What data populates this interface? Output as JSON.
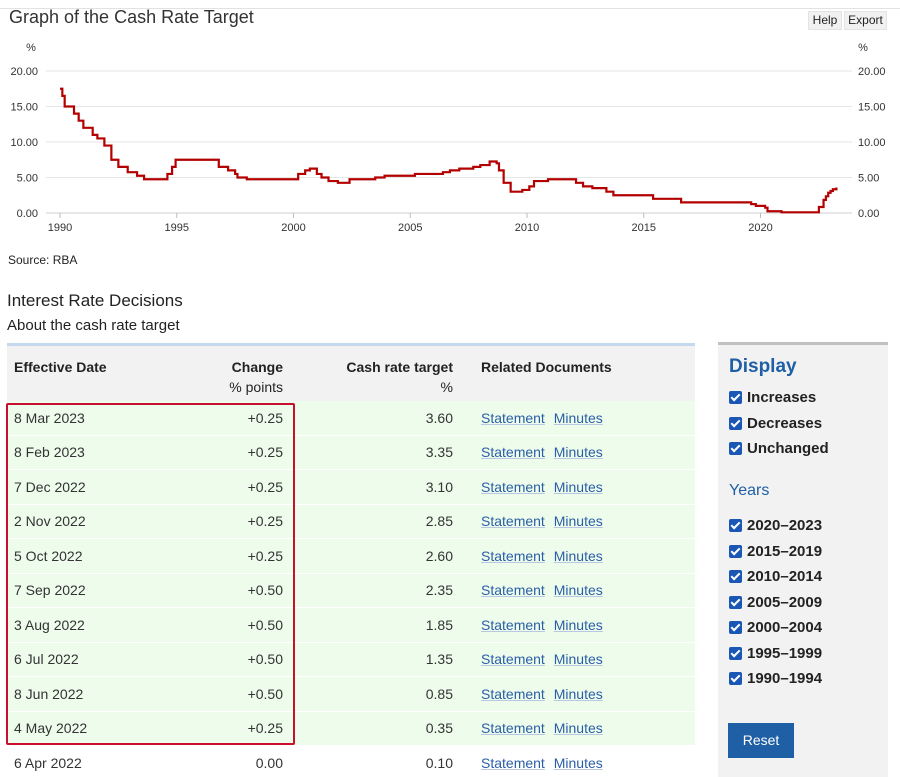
{
  "graph": {
    "title": "Graph of the Cash Rate Target",
    "help_label": "Help",
    "export_label": "Export",
    "source": "Source: RBA"
  },
  "chart_data": {
    "type": "line",
    "title": "Graph of the Cash Rate Target",
    "ylabel": "%",
    "ylim": [
      0,
      20
    ],
    "xlim": [
      1990,
      2025
    ],
    "yticks": [
      "0.00",
      "5.00",
      "10.00",
      "15.00",
      "20.00"
    ],
    "xticks": [
      "1990",
      "1995",
      "2000",
      "2005",
      "2010",
      "2015",
      "2020"
    ],
    "grid": true,
    "color": "#b30000",
    "series": [
      {
        "x": [
          1990.0,
          1990.1,
          1990.2,
          1990.4,
          1990.6,
          1990.8,
          1991.0,
          1991.2,
          1991.4,
          1991.6,
          1991.9,
          1992.2,
          1992.5,
          1992.9,
          1993.3,
          1993.6,
          1994.0,
          1994.6,
          1994.8,
          1994.95,
          1996.6,
          1996.8,
          1997.2,
          1997.5,
          1997.6,
          1998.0,
          1999.9,
          2000.2,
          2000.5,
          2000.7,
          2001.0,
          2001.2,
          2001.5,
          2001.9,
          2002.4,
          2002.8,
          2003.5,
          2003.9,
          2005.2,
          2006.4,
          2006.7,
          2007.1,
          2007.7,
          2008.0,
          2008.4,
          2008.7,
          2008.8,
          2009.0,
          2009.3,
          2009.8,
          2010.1,
          2010.3,
          2010.9,
          2011.9,
          2012.1,
          2012.4,
          2012.8,
          2013.4,
          2013.7,
          2015.1,
          2015.4,
          2016.4,
          2016.6,
          2019.4,
          2019.6,
          2019.8,
          2020.2,
          2020.3,
          2020.9,
          2022.3,
          2022.5,
          2022.7,
          2022.8,
          2022.9,
          2023.0,
          2023.1,
          2023.25
        ],
        "y": [
          17.5,
          16.5,
          15.0,
          15.0,
          14.0,
          13.0,
          12.0,
          12.0,
          11.0,
          10.5,
          9.5,
          7.5,
          6.5,
          5.75,
          5.25,
          4.75,
          4.75,
          5.5,
          6.5,
          7.5,
          7.5,
          6.5,
          6.0,
          5.5,
          5.0,
          4.75,
          4.75,
          5.5,
          6.0,
          6.25,
          5.5,
          5.0,
          4.5,
          4.25,
          4.75,
          4.75,
          5.0,
          5.25,
          5.5,
          5.75,
          6.0,
          6.25,
          6.5,
          6.75,
          7.25,
          7.0,
          6.0,
          4.25,
          3.0,
          3.25,
          3.75,
          4.5,
          4.75,
          4.75,
          4.25,
          3.75,
          3.5,
          3.0,
          2.5,
          2.5,
          2.0,
          2.0,
          1.5,
          1.5,
          1.25,
          1.0,
          0.75,
          0.25,
          0.1,
          0.1,
          0.85,
          1.85,
          2.35,
          2.85,
          3.1,
          3.35,
          3.6
        ]
      }
    ]
  },
  "decisions": {
    "title": "Interest Rate Decisions",
    "subtitle": "About the cash rate target",
    "columns": {
      "date": "Effective Date",
      "change": "Change",
      "change_unit": "% points",
      "rate": "Cash rate target",
      "rate_unit": "%",
      "docs": "Related Documents"
    },
    "rows": [
      {
        "date": "8 Mar 2023",
        "change": "+0.25",
        "rate": "3.60",
        "doc1": "Statement",
        "doc2": "Minutes",
        "type": "inc"
      },
      {
        "date": "8 Feb 2023",
        "change": "+0.25",
        "rate": "3.35",
        "doc1": "Statement",
        "doc2": "Minutes",
        "type": "inc"
      },
      {
        "date": "7 Dec 2022",
        "change": "+0.25",
        "rate": "3.10",
        "doc1": "Statement",
        "doc2": "Minutes",
        "type": "inc"
      },
      {
        "date": "2 Nov 2022",
        "change": "+0.25",
        "rate": "2.85",
        "doc1": "Statement",
        "doc2": "Minutes",
        "type": "inc"
      },
      {
        "date": "5 Oct 2022",
        "change": "+0.25",
        "rate": "2.60",
        "doc1": "Statement",
        "doc2": "Minutes",
        "type": "inc"
      },
      {
        "date": "7 Sep 2022",
        "change": "+0.50",
        "rate": "2.35",
        "doc1": "Statement",
        "doc2": "Minutes",
        "type": "inc"
      },
      {
        "date": "3 Aug 2022",
        "change": "+0.50",
        "rate": "1.85",
        "doc1": "Statement",
        "doc2": "Minutes",
        "type": "inc"
      },
      {
        "date": "6 Jul 2022",
        "change": "+0.50",
        "rate": "1.35",
        "doc1": "Statement",
        "doc2": "Minutes",
        "type": "inc"
      },
      {
        "date": "8 Jun 2022",
        "change": "+0.50",
        "rate": "0.85",
        "doc1": "Statement",
        "doc2": "Minutes",
        "type": "inc"
      },
      {
        "date": "4 May 2022",
        "change": "+0.25",
        "rate": "0.35",
        "doc1": "Statement",
        "doc2": "Minutes",
        "type": "inc"
      },
      {
        "date": "6 Apr 2022",
        "change": "0.00",
        "rate": "0.10",
        "doc1": "Statement",
        "doc2": "Minutes",
        "type": "unc"
      }
    ]
  },
  "display_panel": {
    "title": "Display",
    "filters": [
      {
        "label": "Increases",
        "checked": true
      },
      {
        "label": "Decreases",
        "checked": true
      },
      {
        "label": "Unchanged",
        "checked": true
      }
    ],
    "years_title": "Years",
    "years": [
      {
        "label": "2020–2023",
        "checked": true
      },
      {
        "label": "2015–2019",
        "checked": true
      },
      {
        "label": "2010–2014",
        "checked": true
      },
      {
        "label": "2005–2009",
        "checked": true
      },
      {
        "label": "2000–2004",
        "checked": true
      },
      {
        "label": "1995–1999",
        "checked": true
      },
      {
        "label": "1990–1994",
        "checked": true
      }
    ],
    "reset_label": "Reset"
  }
}
